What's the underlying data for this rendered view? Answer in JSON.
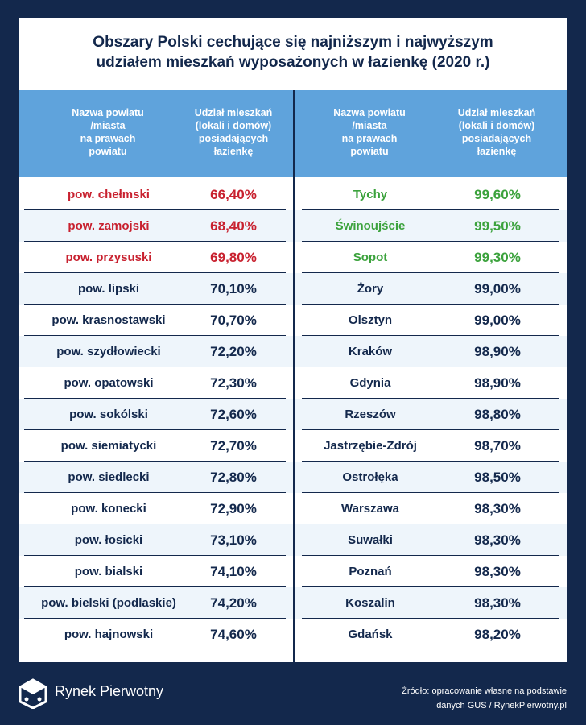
{
  "header": {
    "title": [
      "Obszary Polski cechujące się najniższym i najwyższym",
      "udziałem mieszkań wyposażonych w łazienkę (2020 r.)"
    ]
  },
  "table": {
    "columns": [
      [
        "Nazwa powiatu",
        "/miasta",
        "na prawach",
        "powiatu"
      ],
      [
        "Udział mieszkań",
        "(lokali i domów)",
        "posiadających",
        "łazienkę"
      ],
      [
        "Nazwa powiatu",
        "/miasta",
        "na prawach",
        "powiatu"
      ],
      [
        "Udział mieszkań",
        "(lokali i domów)",
        "posiadających",
        "łazienkę"
      ]
    ],
    "rows": [
      [
        "pow. chełmski",
        "66,40%",
        "Tychy",
        "99,60%"
      ],
      [
        "pow. zamojski",
        "68,40%",
        "Świnoujście",
        "99,50%"
      ],
      [
        "pow. przysuski",
        "69,80%",
        "Sopot",
        "99,30%"
      ],
      [
        "pow. lipski",
        "70,10%",
        "Żory",
        "99,00%"
      ],
      [
        "pow. krasnostawski",
        "70,70%",
        "Olsztyn",
        "99,00%"
      ],
      [
        "pow. szydłowiecki",
        "72,20%",
        "Kraków",
        "98,90%"
      ],
      [
        "pow. opatowski",
        "72,30%",
        "Gdynia",
        "98,90%"
      ],
      [
        "pow. sokólski",
        "72,60%",
        "Rzeszów",
        "98,80%"
      ],
      [
        "pow. siemiatycki",
        "72,70%",
        "Jastrzębie-Zdrój",
        "98,70%"
      ],
      [
        "pow. siedlecki",
        "72,80%",
        "Ostrołęka",
        "98,50%"
      ],
      [
        "pow. konecki",
        "72,90%",
        "Warszawa",
        "98,30%"
      ],
      [
        "pow. łosicki",
        "73,10%",
        "Suwałki",
        "98,30%"
      ],
      [
        "pow. bialski",
        "74,10%",
        "Poznań",
        "98,30%"
      ],
      [
        "pow. bielski (podlaskie)",
        "74,20%",
        "Koszalin",
        "98,30%"
      ],
      [
        "pow. hajnowski",
        "74,60%",
        "Gdańsk",
        "98,20%"
      ]
    ]
  },
  "footer": {
    "logo": "Rynek Pierwotny",
    "source": [
      "Źródło: opracowanie własne na podstawie",
      "danych GUS / RynekPierwotny.pl"
    ]
  }
}
